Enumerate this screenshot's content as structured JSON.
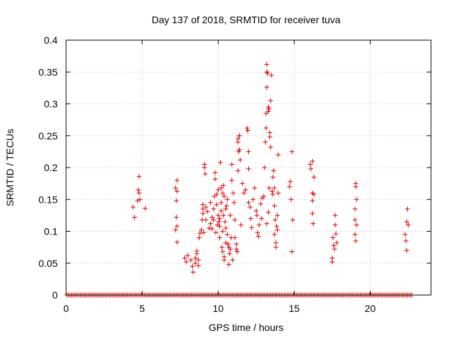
{
  "chart_data": {
    "type": "scatter",
    "title": "Day 137 of 2018, SRMTID for receiver tuva",
    "xlabel": "GPS time / hours",
    "ylabel": "SRMTID / TECUs",
    "xlim": [
      0,
      24
    ],
    "ylim": [
      0,
      0.4
    ],
    "xticks": [
      0,
      5,
      10,
      15,
      20
    ],
    "yticks": [
      0,
      0.05,
      0.1,
      0.15,
      0.2,
      0.25,
      0.3,
      0.35,
      0.4
    ],
    "xtick_labels": [
      "0",
      "5",
      "10",
      "15",
      "20"
    ],
    "ytick_labels": [
      "0",
      "0.05",
      "0.1",
      "0.15",
      "0.2",
      "0.25",
      "0.3",
      "0.35",
      "0.4"
    ],
    "grid": true,
    "marker": "+",
    "color": "#dd0000",
    "baseline": {
      "y": 0,
      "x_start": 0.05,
      "x_end": 22.8,
      "step": 0.1
    },
    "points": [
      [
        4.4,
        0.138
      ],
      [
        4.5,
        0.122
      ],
      [
        4.7,
        0.148
      ],
      [
        4.75,
        0.165
      ],
      [
        4.8,
        0.16
      ],
      [
        4.8,
        0.186
      ],
      [
        4.85,
        0.15
      ],
      [
        5.2,
        0.136
      ],
      [
        7.2,
        0.168
      ],
      [
        7.3,
        0.18
      ],
      [
        7.3,
        0.163
      ],
      [
        7.25,
        0.122
      ],
      [
        7.3,
        0.108
      ],
      [
        7.2,
        0.102
      ],
      [
        7.3,
        0.083
      ],
      [
        7.25,
        0.148
      ],
      [
        7.8,
        0.058
      ],
      [
        7.9,
        0.052
      ],
      [
        8.0,
        0.062
      ],
      [
        8.2,
        0.055
      ],
      [
        8.3,
        0.045
      ],
      [
        8.35,
        0.036
      ],
      [
        8.5,
        0.058
      ],
      [
        8.5,
        0.05
      ],
      [
        8.6,
        0.065
      ],
      [
        8.6,
        0.069
      ],
      [
        8.7,
        0.055
      ],
      [
        8.7,
        0.046
      ],
      [
        8.75,
        0.09
      ],
      [
        8.8,
        0.097
      ],
      [
        8.9,
        0.102
      ],
      [
        8.95,
        0.118
      ],
      [
        9.0,
        0.135
      ],
      [
        9.0,
        0.142
      ],
      [
        9.0,
        0.128
      ],
      [
        9.05,
        0.098
      ],
      [
        9.1,
        0.2
      ],
      [
        9.1,
        0.205
      ],
      [
        9.15,
        0.19
      ],
      [
        9.2,
        0.118
      ],
      [
        9.2,
        0.138
      ],
      [
        9.3,
        0.131
      ],
      [
        9.4,
        0.105
      ],
      [
        9.5,
        0.112
      ],
      [
        9.5,
        0.145
      ],
      [
        9.6,
        0.104
      ],
      [
        9.6,
        0.122
      ],
      [
        9.7,
        0.118
      ],
      [
        9.7,
        0.135
      ],
      [
        9.75,
        0.155
      ],
      [
        9.8,
        0.182
      ],
      [
        9.8,
        0.192
      ],
      [
        9.85,
        0.098
      ],
      [
        9.9,
        0.158
      ],
      [
        9.9,
        0.142
      ],
      [
        9.95,
        0.11
      ],
      [
        10.0,
        0.165
      ],
      [
        10.0,
        0.125
      ],
      [
        10.05,
        0.115
      ],
      [
        10.1,
        0.09
      ],
      [
        10.1,
        0.12
      ],
      [
        10.1,
        0.108
      ],
      [
        10.15,
        0.208
      ],
      [
        10.2,
        0.145
      ],
      [
        10.2,
        0.168
      ],
      [
        10.2,
        0.132
      ],
      [
        10.25,
        0.075
      ],
      [
        10.3,
        0.068
      ],
      [
        10.3,
        0.1
      ],
      [
        10.3,
        0.16
      ],
      [
        10.35,
        0.172
      ],
      [
        10.35,
        0.125
      ],
      [
        10.4,
        0.155
      ],
      [
        10.4,
        0.06
      ],
      [
        10.4,
        0.055
      ],
      [
        10.45,
        0.115
      ],
      [
        10.5,
        0.135
      ],
      [
        10.5,
        0.082
      ],
      [
        10.5,
        0.105
      ],
      [
        10.55,
        0.14
      ],
      [
        10.6,
        0.15
      ],
      [
        10.6,
        0.095
      ],
      [
        10.65,
        0.08
      ],
      [
        10.7,
        0.075
      ],
      [
        10.7,
        0.048
      ],
      [
        10.75,
        0.065
      ],
      [
        10.8,
        0.072
      ],
      [
        10.8,
        0.125
      ],
      [
        10.85,
        0.09
      ],
      [
        10.9,
        0.18
      ],
      [
        10.9,
        0.205
      ],
      [
        10.95,
        0.055
      ],
      [
        11.0,
        0.16
      ],
      [
        11.05,
        0.145
      ],
      [
        11.1,
        0.118
      ],
      [
        11.1,
        0.09
      ],
      [
        11.2,
        0.08
      ],
      [
        11.2,
        0.072
      ],
      [
        11.25,
        0.068
      ],
      [
        11.3,
        0.195
      ],
      [
        11.3,
        0.24
      ],
      [
        11.3,
        0.245
      ],
      [
        11.35,
        0.225
      ],
      [
        11.4,
        0.25
      ],
      [
        11.4,
        0.25
      ],
      [
        11.4,
        0.228
      ],
      [
        11.45,
        0.212
      ],
      [
        11.5,
        0.11
      ],
      [
        11.6,
        0.175
      ],
      [
        11.7,
        0.16
      ],
      [
        11.8,
        0.165
      ],
      [
        11.9,
        0.262
      ],
      [
        11.95,
        0.258
      ],
      [
        12.0,
        0.225
      ],
      [
        12.0,
        0.198
      ],
      [
        12.0,
        0.145
      ],
      [
        12.1,
        0.138
      ],
      [
        12.15,
        0.12
      ],
      [
        12.2,
        0.106
      ],
      [
        12.3,
        0.15
      ],
      [
        12.4,
        0.168
      ],
      [
        12.5,
        0.132
      ],
      [
        12.55,
        0.125
      ],
      [
        12.6,
        0.098
      ],
      [
        12.65,
        0.092
      ],
      [
        12.7,
        0.11
      ],
      [
        12.8,
        0.143
      ],
      [
        12.85,
        0.12
      ],
      [
        12.9,
        0.152
      ],
      [
        13.0,
        0.155
      ],
      [
        13.05,
        0.2
      ],
      [
        13.1,
        0.24
      ],
      [
        13.15,
        0.262
      ],
      [
        13.15,
        0.285
      ],
      [
        13.2,
        0.326
      ],
      [
        13.2,
        0.35
      ],
      [
        13.2,
        0.362
      ],
      [
        13.25,
        0.348
      ],
      [
        13.3,
        0.295
      ],
      [
        13.3,
        0.288
      ],
      [
        13.35,
        0.292
      ],
      [
        13.35,
        0.168
      ],
      [
        13.4,
        0.255
      ],
      [
        13.4,
        0.248
      ],
      [
        13.45,
        0.305
      ],
      [
        13.45,
        0.232
      ],
      [
        13.5,
        0.345
      ],
      [
        13.55,
        0.163
      ],
      [
        13.6,
        0.158
      ],
      [
        13.6,
        0.185
      ],
      [
        13.65,
        0.195
      ],
      [
        13.7,
        0.168
      ],
      [
        13.7,
        0.14
      ],
      [
        13.7,
        0.095
      ],
      [
        13.75,
        0.118
      ],
      [
        13.8,
        0.082
      ],
      [
        13.8,
        0.075
      ],
      [
        13.85,
        0.108
      ],
      [
        13.9,
        0.125
      ],
      [
        13.9,
        0.102
      ],
      [
        13.95,
        0.22
      ],
      [
        13.95,
        0.16
      ],
      [
        13.2,
        0.112
      ],
      [
        13.3,
        0.13
      ],
      [
        14.7,
        0.17
      ],
      [
        14.75,
        0.178
      ],
      [
        14.8,
        0.15
      ],
      [
        14.85,
        0.068
      ],
      [
        14.85,
        0.225
      ],
      [
        14.9,
        0.118
      ],
      [
        16.05,
        0.205
      ],
      [
        16.1,
        0.198
      ],
      [
        16.2,
        0.21
      ],
      [
        16.2,
        0.16
      ],
      [
        16.2,
        0.148
      ],
      [
        16.2,
        0.128
      ],
      [
        16.25,
        0.112
      ],
      [
        16.3,
        0.158
      ],
      [
        16.3,
        0.185
      ],
      [
        17.5,
        0.052
      ],
      [
        17.5,
        0.058
      ],
      [
        17.55,
        0.09
      ],
      [
        17.6,
        0.078
      ],
      [
        17.65,
        0.072
      ],
      [
        17.7,
        0.11
      ],
      [
        17.7,
        0.125
      ],
      [
        17.75,
        0.096
      ],
      [
        17.8,
        0.082
      ],
      [
        19.0,
        0.135
      ],
      [
        19.0,
        0.118
      ],
      [
        19.05,
        0.175
      ],
      [
        19.05,
        0.17
      ],
      [
        19.1,
        0.15
      ],
      [
        19.1,
        0.11
      ],
      [
        19.0,
        0.095
      ],
      [
        19.05,
        0.085
      ],
      [
        22.3,
        0.095
      ],
      [
        22.35,
        0.085
      ],
      [
        22.4,
        0.07
      ],
      [
        22.4,
        0.115
      ],
      [
        22.45,
        0.135
      ],
      [
        22.5,
        0.11
      ]
    ]
  }
}
